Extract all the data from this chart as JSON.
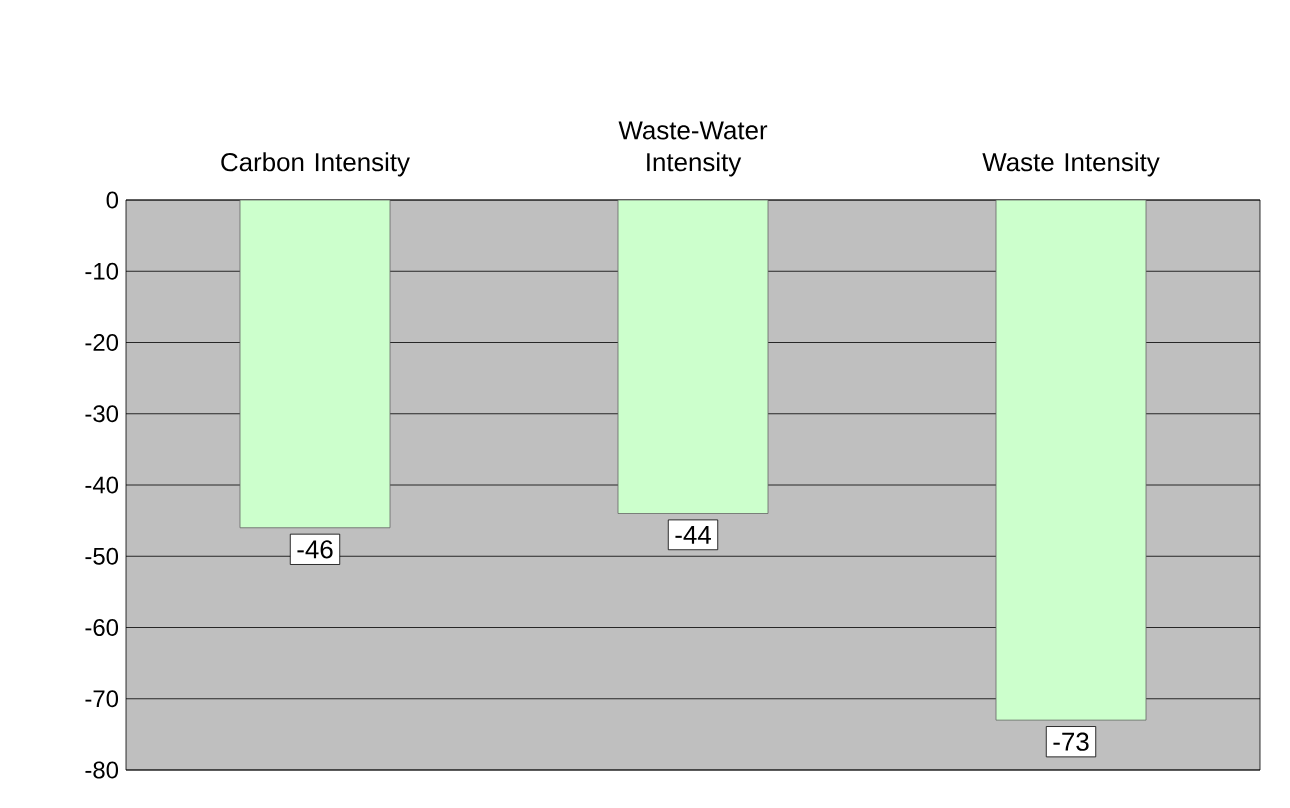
{
  "chart_data": {
    "type": "bar",
    "categories": [
      "Carbon Intensity",
      "Waste-Water Intensity",
      "Waste Intensity"
    ],
    "values": [
      -46,
      -44,
      -73
    ],
    "color": "#ccffcc",
    "ylim": [
      -80,
      0
    ],
    "yticks": [
      -80,
      -70,
      -60,
      -50,
      -40,
      -30,
      -20,
      -10,
      0
    ],
    "grid": "y",
    "data_labels": true
  }
}
